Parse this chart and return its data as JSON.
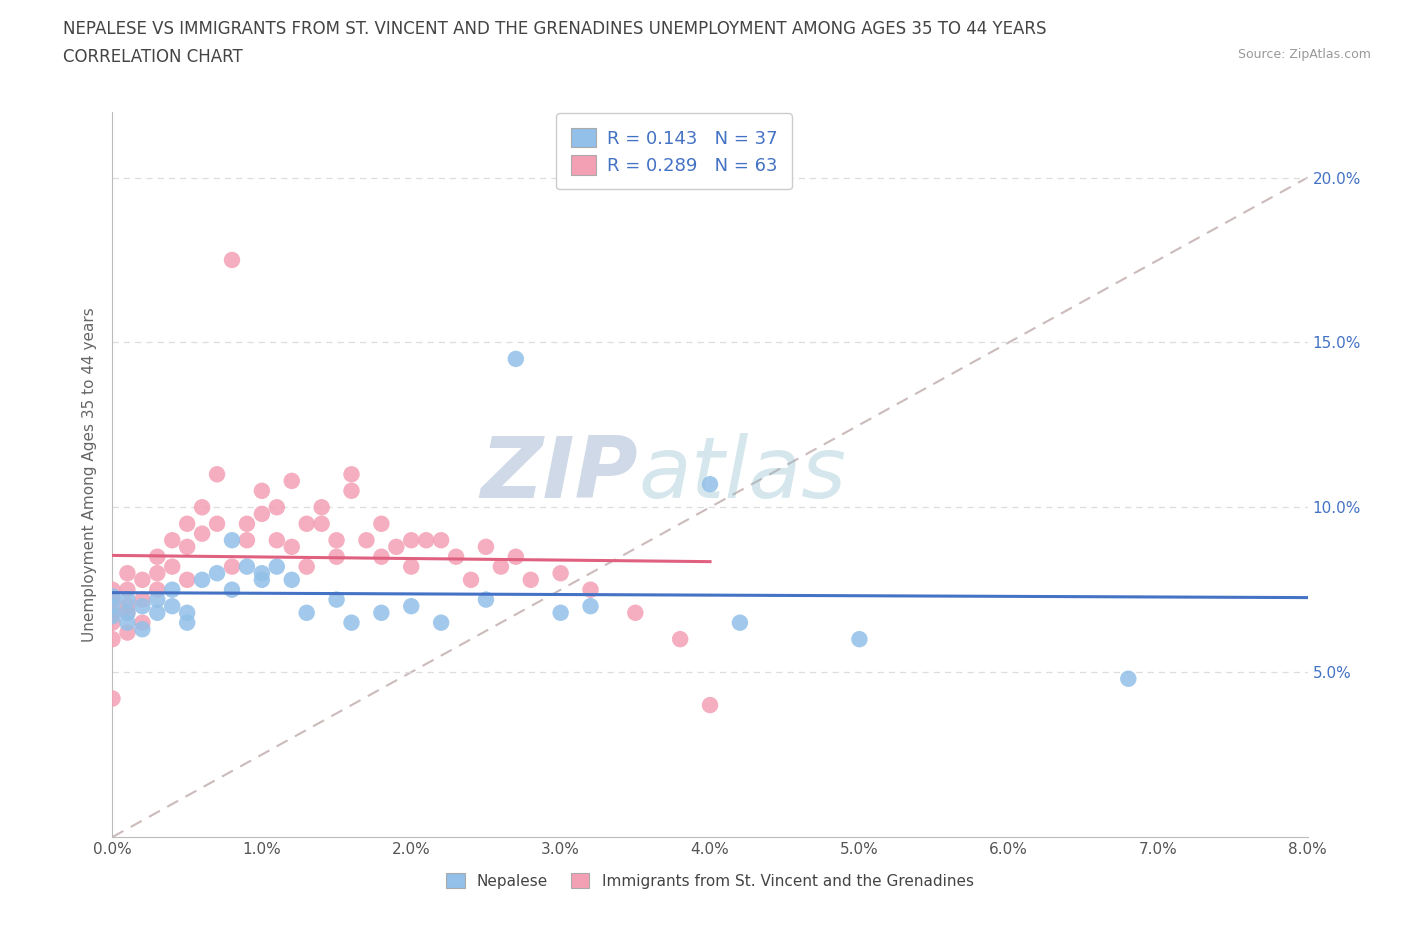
{
  "title_line1": "NEPALESE VS IMMIGRANTS FROM ST. VINCENT AND THE GRENADINES UNEMPLOYMENT AMONG AGES 35 TO 44 YEARS",
  "title_line2": "CORRELATION CHART",
  "source": "Source: ZipAtlas.com",
  "ylabel": "Unemployment Among Ages 35 to 44 years",
  "legend_label1": "Nepalese",
  "legend_label2": "Immigrants from St. Vincent and the Grenadines",
  "R1": 0.143,
  "N1": 37,
  "R2": 0.289,
  "N2": 63,
  "color_blue": "#92C0E8",
  "color_pink": "#F4A0B4",
  "color_blue_trend": "#4472C4",
  "color_pink_trend": "#E06080",
  "color_diag": "#CCBBBB",
  "xlim": [
    0.0,
    0.08
  ],
  "ylim": [
    0.0,
    0.22
  ],
  "nepalese_x": [
    0.0,
    0.0,
    0.0,
    0.001,
    0.001,
    0.001,
    0.002,
    0.002,
    0.003,
    0.003,
    0.004,
    0.004,
    0.005,
    0.005,
    0.006,
    0.007,
    0.008,
    0.008,
    0.009,
    0.01,
    0.01,
    0.011,
    0.012,
    0.013,
    0.015,
    0.016,
    0.018,
    0.02,
    0.022,
    0.025,
    0.027,
    0.03,
    0.032,
    0.04,
    0.042,
    0.05,
    0.068
  ],
  "nepalese_y": [
    0.067,
    0.07,
    0.073,
    0.065,
    0.072,
    0.068,
    0.063,
    0.07,
    0.068,
    0.072,
    0.075,
    0.07,
    0.068,
    0.065,
    0.078,
    0.08,
    0.09,
    0.075,
    0.082,
    0.078,
    0.08,
    0.082,
    0.078,
    0.068,
    0.072,
    0.065,
    0.068,
    0.07,
    0.065,
    0.072,
    0.145,
    0.068,
    0.07,
    0.107,
    0.065,
    0.06,
    0.048
  ],
  "svg_x": [
    0.0,
    0.0,
    0.0,
    0.0,
    0.0,
    0.001,
    0.001,
    0.001,
    0.001,
    0.001,
    0.002,
    0.002,
    0.002,
    0.003,
    0.003,
    0.003,
    0.004,
    0.004,
    0.005,
    0.005,
    0.005,
    0.006,
    0.006,
    0.007,
    0.007,
    0.008,
    0.008,
    0.009,
    0.009,
    0.01,
    0.01,
    0.011,
    0.011,
    0.012,
    0.012,
    0.013,
    0.013,
    0.014,
    0.014,
    0.015,
    0.015,
    0.016,
    0.016,
    0.017,
    0.018,
    0.018,
    0.019,
    0.02,
    0.02,
    0.021,
    0.022,
    0.023,
    0.024,
    0.025,
    0.026,
    0.027,
    0.028,
    0.03,
    0.032,
    0.035,
    0.038,
    0.04,
    0.0
  ],
  "svg_y": [
    0.068,
    0.072,
    0.075,
    0.065,
    0.06,
    0.07,
    0.075,
    0.08,
    0.068,
    0.062,
    0.072,
    0.078,
    0.065,
    0.08,
    0.085,
    0.075,
    0.09,
    0.082,
    0.095,
    0.088,
    0.078,
    0.1,
    0.092,
    0.11,
    0.095,
    0.175,
    0.082,
    0.09,
    0.095,
    0.098,
    0.105,
    0.1,
    0.09,
    0.108,
    0.088,
    0.095,
    0.082,
    0.095,
    0.1,
    0.085,
    0.09,
    0.105,
    0.11,
    0.09,
    0.095,
    0.085,
    0.088,
    0.09,
    0.082,
    0.09,
    0.09,
    0.085,
    0.078,
    0.088,
    0.082,
    0.085,
    0.078,
    0.08,
    0.075,
    0.068,
    0.06,
    0.04,
    0.042
  ]
}
